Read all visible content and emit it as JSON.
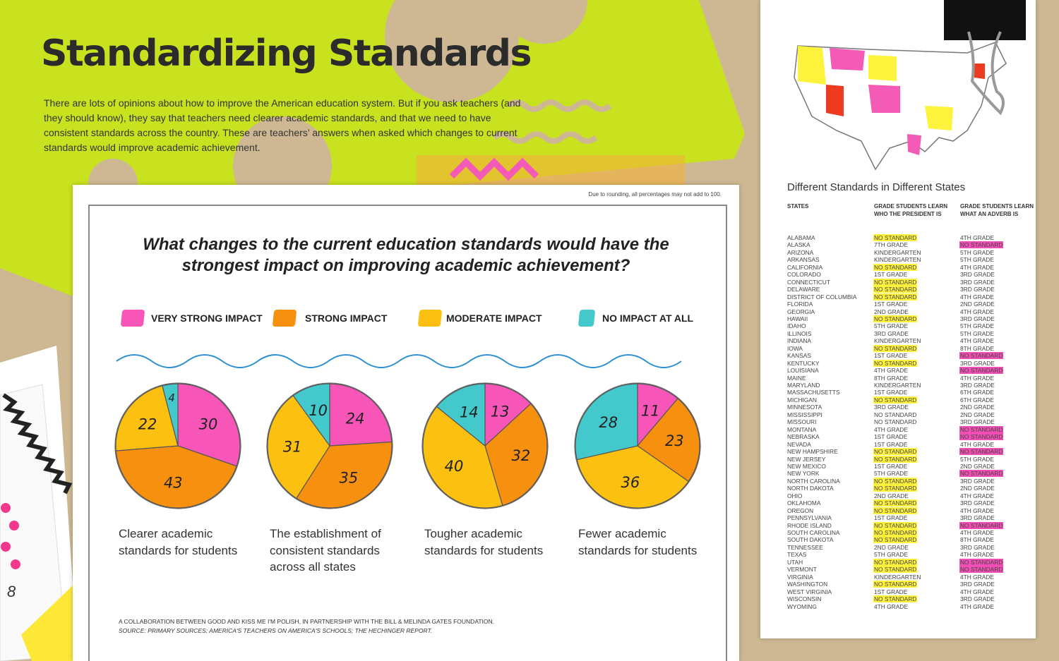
{
  "header": {
    "title": "Standardizing Standards",
    "intro": "There are lots of opinions about how to improve the American education system. But if you ask teachers (and they should know), they say that teachers need clearer academic standards, and that we need to have consistent standards across the country. These are teachers’ answers when asked which changes to current standards would improve academic achievement."
  },
  "note": "Due to rounding, all percentages may not add to 100.",
  "question": "What changes to the current education standards would have the strongest impact on improving academic achievement?",
  "legend": {
    "categories": [
      "VERY STRONG IMPACT",
      "STRONG IMPACT",
      "MODERATE IMPACT",
      "NO IMPACT AT ALL"
    ],
    "colors": [
      "#f756b8",
      "#f7900f",
      "#fcc010",
      "#43c8cc"
    ]
  },
  "chart_data": [
    {
      "type": "pie",
      "title": "Clearer academic standards for students",
      "values": [
        30,
        43,
        22,
        4
      ]
    },
    {
      "type": "pie",
      "title": "The establishment of consistent standards across all states",
      "values": [
        24,
        35,
        31,
        10
      ]
    },
    {
      "type": "pie",
      "title": "Tougher academic standards for students",
      "values": [
        13,
        32,
        40,
        14
      ]
    },
    {
      "type": "pie",
      "title": "Fewer academic standards for students",
      "values": [
        11,
        23,
        36,
        28
      ]
    }
  ],
  "credit": [
    "A COLLABORATION BETWEEN GOOD AND KISS ME I'M POLISH, IN PARTNERSHIP WITH THE BILL & MELINDA GATES FOUNDATION.",
    "SOURCE: PRIMARY SOURCES: AMERICA'S TEACHERS ON AMERICA'S SCHOOLS; THE HECHINGER REPORT."
  ],
  "table": {
    "title": "Different Standards in Different States",
    "columns": [
      "STATES",
      "GRADE STUDENTS LEARN WHO THE PRESIDENT IS",
      "GRADE STUDENTS LEARN WHAT AN ADVERB IS"
    ],
    "rows": [
      {
        "cells": [
          "ALABAMA",
          "NO STANDARD",
          "4TH GRADE"
        ],
        "highlight": [
          1
        ]
      },
      {
        "cells": [
          "ALASKA",
          "7TH GRADE",
          "NO STANDARD"
        ],
        "highlight": [
          2
        ]
      },
      {
        "cells": [
          "ARIZONA",
          "KINDERGARTEN",
          "5TH GRADE"
        ],
        "highlight": []
      },
      {
        "cells": [
          "ARKANSAS",
          "KINDERGARTEN",
          "5TH GRADE"
        ],
        "highlight": []
      },
      {
        "cells": [
          "CALIFORNIA",
          "NO STANDARD",
          "4TH GRADE"
        ],
        "highlight": [
          1
        ]
      },
      {
        "cells": [
          "COLORADO",
          "1ST GRADE",
          "3RD GRADE"
        ],
        "highlight": []
      },
      {
        "cells": [
          "CONNECTICUT",
          "NO STANDARD",
          "3RD GRADE"
        ],
        "highlight": [
          1
        ]
      },
      {
        "cells": [
          "DELAWARE",
          "NO STANDARD",
          "3RD GRADE"
        ],
        "highlight": [
          1
        ]
      },
      {
        "cells": [
          "DISTRICT OF COLUMBIA",
          "NO STANDARD",
          "4TH GRADE"
        ],
        "highlight": [
          1
        ]
      },
      {
        "cells": [
          "FLORIDA",
          "1ST GRADE",
          "2ND GRADE"
        ],
        "highlight": []
      },
      {
        "cells": [
          "GEORGIA",
          "2ND GRADE",
          "4TH GRADE"
        ],
        "highlight": []
      },
      {
        "cells": [
          "HAWAII",
          "NO STANDARD",
          "3RD GRADE"
        ],
        "highlight": [
          1
        ]
      },
      {
        "cells": [
          "IDAHO",
          "5TH GRADE",
          "5TH GRADE"
        ],
        "highlight": []
      },
      {
        "cells": [
          "ILLINOIS",
          "3RD GRADE",
          "5TH GRADE"
        ],
        "highlight": []
      },
      {
        "cells": [
          "INDIANA",
          "KINDERGARTEN",
          "4TH GRADE"
        ],
        "highlight": []
      },
      {
        "cells": [
          "IOWA",
          "NO STANDARD",
          "8TH GRADE"
        ],
        "highlight": [
          1
        ]
      },
      {
        "cells": [
          "KANSAS",
          "1ST GRADE",
          "NO STANDARD"
        ],
        "highlight": [
          2
        ]
      },
      {
        "cells": [
          "KENTUCKY",
          "NO STANDARD",
          "3RD GRADE"
        ],
        "highlight": [
          1
        ]
      },
      {
        "cells": [
          "LOUISIANA",
          "4TH GRADE",
          "NO STANDARD"
        ],
        "highlight": [
          2
        ]
      },
      {
        "cells": [
          "MAINE",
          "8TH GRADE",
          "4TH GRADE"
        ],
        "highlight": []
      },
      {
        "cells": [
          "MARYLAND",
          "KINDERGARTEN",
          "3RD GRADE"
        ],
        "highlight": []
      },
      {
        "cells": [
          "MASSACHUSETTS",
          "1ST GRADE",
          "6TH GRADE"
        ],
        "highlight": []
      },
      {
        "cells": [
          "MICHIGAN",
          "NO STANDARD",
          "6TH GRADE"
        ],
        "highlight": [
          1
        ]
      },
      {
        "cells": [
          "MINNESOTA",
          "3RD GRADE",
          "2ND GRADE"
        ],
        "highlight": []
      },
      {
        "cells": [
          "MISSISSIPPI",
          "NO STANDARD",
          "2ND GRADE"
        ],
        "highlight": []
      },
      {
        "cells": [
          "MISSOURI",
          "NO STANDARD",
          "3RD GRADE"
        ],
        "highlight": []
      },
      {
        "cells": [
          "MONTANA",
          "4TH GRADE",
          "NO STANDARD"
        ],
        "highlight": [
          2
        ]
      },
      {
        "cells": [
          "NEBRASKA",
          "1ST GRADE",
          "NO STANDARD"
        ],
        "highlight": [
          2
        ]
      },
      {
        "cells": [
          "NEVADA",
          "1ST GRADE",
          "4TH GRADE"
        ],
        "highlight": []
      },
      {
        "cells": [
          "NEW HAMPSHIRE",
          "NO STANDARD",
          "NO STANDARD"
        ],
        "highlight": [
          1,
          2
        ]
      },
      {
        "cells": [
          "NEW JERSEY",
          "NO STANDARD",
          "5TH GRADE"
        ],
        "highlight": [
          1
        ]
      },
      {
        "cells": [
          "NEW MEXICO",
          "1ST GRADE",
          "2ND GRADE"
        ],
        "highlight": []
      },
      {
        "cells": [
          "NEW YORK",
          "5TH GRADE",
          "NO STANDARD"
        ],
        "highlight": [
          2
        ]
      },
      {
        "cells": [
          "NORTH CAROLINA",
          "NO STANDARD",
          "3RD GRADE"
        ],
        "highlight": [
          1
        ]
      },
      {
        "cells": [
          "NORTH DAKOTA",
          "NO STANDARD",
          "2ND GRADE"
        ],
        "highlight": [
          1
        ]
      },
      {
        "cells": [
          "OHIO",
          "2ND GRADE",
          "4TH GRADE"
        ],
        "highlight": []
      },
      {
        "cells": [
          "OKLAHOMA",
          "NO STANDARD",
          "3RD GRADE"
        ],
        "highlight": [
          1
        ]
      },
      {
        "cells": [
          "OREGON",
          "NO STANDARD",
          "4TH GRADE"
        ],
        "highlight": [
          1
        ]
      },
      {
        "cells": [
          "PENNSYLVANIA",
          "1ST GRADE",
          "3RD GRADE"
        ],
        "highlight": []
      },
      {
        "cells": [
          "RHODE ISLAND",
          "NO STANDARD",
          "NO STANDARD"
        ],
        "highlight": [
          1,
          2
        ]
      },
      {
        "cells": [
          "SOUTH CAROLINA",
          "NO STANDARD",
          "4TH GRADE"
        ],
        "highlight": [
          1
        ]
      },
      {
        "cells": [
          "SOUTH DAKOTA",
          "NO STANDARD",
          "8TH GRADE"
        ],
        "highlight": [
          1
        ]
      },
      {
        "cells": [
          "TENNESSEE",
          "2ND GRADE",
          "3RD GRADE"
        ],
        "highlight": []
      },
      {
        "cells": [
          "TEXAS",
          "5TH GRADE",
          "4TH GRADE"
        ],
        "highlight": []
      },
      {
        "cells": [
          "UTAH",
          "NO STANDARD",
          "NO STANDARD"
        ],
        "highlight": [
          1,
          2
        ]
      },
      {
        "cells": [
          "VERMONT",
          "NO STANDARD",
          "NO STANDARD"
        ],
        "highlight": [
          1,
          2
        ]
      },
      {
        "cells": [
          "VIRGINIA",
          "KINDERGARTEN",
          "4TH GRADE"
        ],
        "highlight": []
      },
      {
        "cells": [
          "WASHINGTON",
          "NO STANDARD",
          "3RD GRADE"
        ],
        "highlight": [
          1
        ]
      },
      {
        "cells": [
          "WEST VIRGINIA",
          "1ST GRADE",
          "4TH GRADE"
        ],
        "highlight": []
      },
      {
        "cells": [
          "WISCONSIN",
          "NO STANDARD",
          "3RD GRADE"
        ],
        "highlight": [
          1
        ]
      },
      {
        "cells": [
          "WYOMING",
          "4TH GRADE",
          "4TH GRADE"
        ],
        "highlight": []
      }
    ]
  },
  "page_number": "8"
}
